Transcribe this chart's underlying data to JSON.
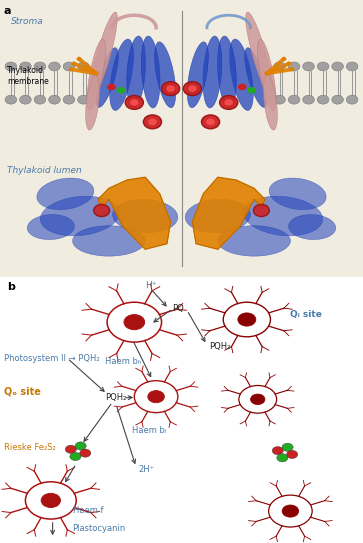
{
  "bg_color": "#ffffff",
  "panel_a_bg": "#f0ece0",
  "text_blue": "#4a7aaa",
  "text_orange": "#c87800",
  "text_dark": "#222222",
  "arrow_color": "#444444",
  "heme_dark": "#880000",
  "heme_bright": "#cc2222",
  "fe_red": "#cc2222",
  "fe_green": "#22aa22",
  "mem_gray": "#a0a0a0",
  "blue_protein": "#2244bb",
  "pink_protein": "#cc9999",
  "orange_protein": "#e08000",
  "figsize": [
    3.63,
    5.43
  ],
  "dpi": 100,
  "stroma_label": "Stroma",
  "thylakoid_membrane_label": "Thylakoid\nmembrane",
  "thylakoid_lumen_label": "Thylakoid lumen"
}
